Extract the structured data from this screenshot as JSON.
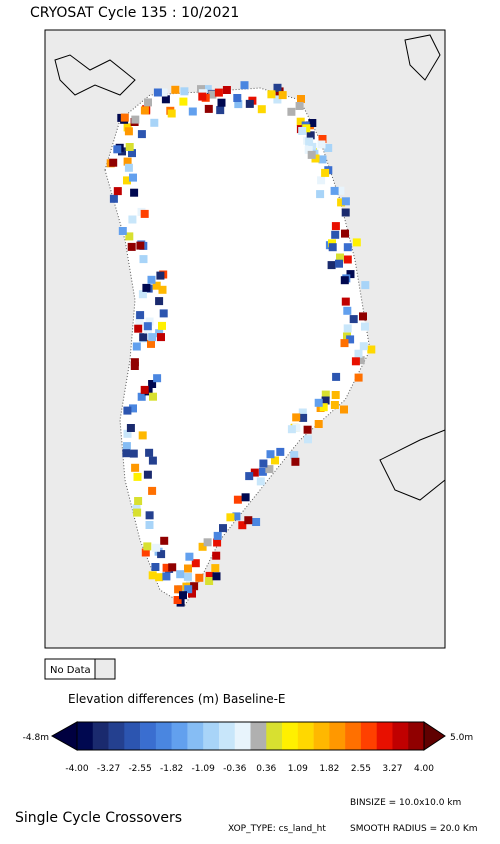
{
  "header": {
    "title": "CRYOSAT Cycle 135 : 10/2021"
  },
  "legend": {
    "no_data": "No Data"
  },
  "colorbar": {
    "title": "Elevation differences (m) Baseline-E",
    "min_label": "-4.8m",
    "max_label": "5.0m",
    "tick_labels": [
      "-4.00",
      "-3.27",
      "-2.55",
      "-1.82",
      "-1.09",
      "-0.36",
      "0.36",
      "1.09",
      "1.82",
      "2.55",
      "3.27",
      "4.00"
    ],
    "colors": [
      "#000850",
      "#1a2a6e",
      "#24408f",
      "#2c55b0",
      "#3a6ed0",
      "#4a86e0",
      "#62a0ee",
      "#86bdf4",
      "#a8d4f8",
      "#c8e6fa",
      "#e8f4fc",
      "#b0b0b0",
      "#d8e030",
      "#fff000",
      "#ffd800",
      "#ffb800",
      "#ff9800",
      "#ff7000",
      "#ff4000",
      "#e81000",
      "#c00000",
      "#900000"
    ],
    "under_color": "#000040",
    "over_color": "#600000"
  },
  "footer": {
    "heading": "Single Cycle Crossovers",
    "binsize": "BINSIZE = 10.0x10.0 km",
    "xop_type": "XOP_TYPE: cs_land_ht",
    "smooth_radius": "SMOOTH RADIUS =  20.0 Km"
  }
}
